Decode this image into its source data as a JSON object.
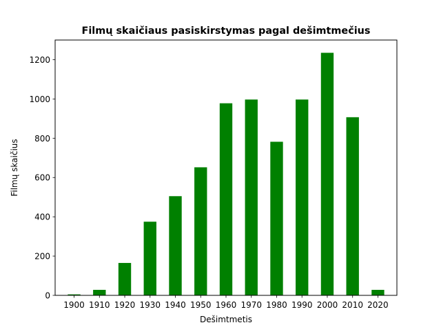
{
  "chart_data": {
    "type": "bar",
    "title": "Filmų skaičiaus pasiskirstymas pagal dešimtmečius",
    "xlabel": "Dešimtmetis",
    "ylabel": "Filmų skaičius",
    "categories": [
      "1900",
      "1910",
      "1920",
      "1930",
      "1940",
      "1950",
      "1960",
      "1970",
      "1980",
      "1990",
      "2000",
      "2010",
      "2020"
    ],
    "values": [
      5,
      28,
      165,
      375,
      505,
      652,
      978,
      997,
      782,
      997,
      1235,
      907,
      28
    ],
    "ylim": [
      0,
      1300
    ],
    "yticks": [
      0,
      200,
      400,
      600,
      800,
      1000,
      1200
    ],
    "ytick_labels": [
      "0",
      "200",
      "400",
      "600",
      "800",
      "1000",
      "1200"
    ],
    "bar_color": "#008000",
    "grid": false,
    "legend": "none"
  }
}
